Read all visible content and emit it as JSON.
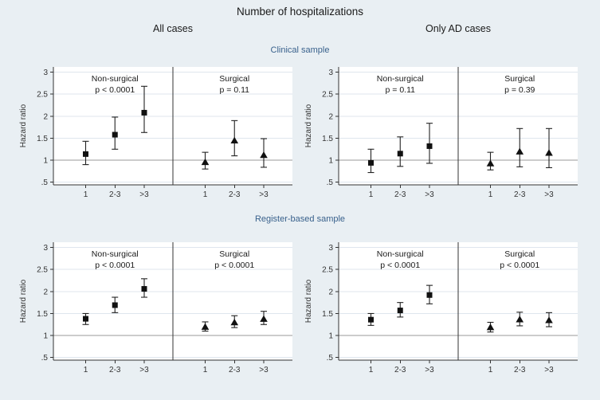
{
  "title": "Number of hospitalizations",
  "columns": {
    "left": "All cases",
    "right": "Only AD cases"
  },
  "sections": {
    "top": "Clinical sample",
    "bottom": "Register-based sample"
  },
  "colors": {
    "background": "#e9eff3",
    "plot_background": "#ffffff",
    "grid": "#dfe6ee",
    "reference_line": "#999999",
    "axis": "#333333",
    "divider": "#333333",
    "marker": "#111111",
    "error_bar": "#222222",
    "section_header": "#39618c",
    "text": "#1a1a1a",
    "tick_text": "#333333"
  },
  "chart_data": [
    {
      "type": "scatter",
      "section": "Clinical sample",
      "column": "All cases",
      "ylabel": "Hazard ratio",
      "ylim": [
        0.44,
        3.12
      ],
      "ref_line": 1,
      "grid": true,
      "yticks": [
        {
          "value": 0.5,
          "label": ".5"
        },
        {
          "value": 1,
          "label": "1"
        },
        {
          "value": 1.5,
          "label": "1.5"
        },
        {
          "value": 2,
          "label": "2"
        },
        {
          "value": 2.5,
          "label": "2.5"
        },
        {
          "value": 3,
          "label": "3"
        }
      ],
      "categories": [
        "1",
        "2-3",
        ">3"
      ],
      "subpanels": [
        {
          "label": "Non-surgical",
          "p_label": "p < 0.0001",
          "marker": "square",
          "points": [
            {
              "category": "1",
              "y": 1.14,
              "ci_low": 0.9,
              "ci_high": 1.43
            },
            {
              "category": "2-3",
              "y": 1.58,
              "ci_low": 1.25,
              "ci_high": 1.98
            },
            {
              "category": ">3",
              "y": 2.08,
              "ci_low": 1.63,
              "ci_high": 2.68
            }
          ]
        },
        {
          "label": "Surgical",
          "p_label": "p = 0.11",
          "marker": "triangle",
          "points": [
            {
              "category": "1",
              "y": 0.96,
              "ci_low": 0.8,
              "ci_high": 1.18
            },
            {
              "category": "2-3",
              "y": 1.45,
              "ci_low": 1.1,
              "ci_high": 1.9
            },
            {
              "category": ">3",
              "y": 1.12,
              "ci_low": 0.84,
              "ci_high": 1.49
            }
          ]
        }
      ]
    },
    {
      "type": "scatter",
      "section": "Clinical sample",
      "column": "Only AD cases",
      "ylabel": "Hazard ratio",
      "ylim": [
        0.44,
        3.12
      ],
      "ref_line": 1,
      "grid": true,
      "yticks": [
        {
          "value": 0.5,
          "label": ".5"
        },
        {
          "value": 1,
          "label": "1"
        },
        {
          "value": 1.5,
          "label": "1.5"
        },
        {
          "value": 2,
          "label": "2"
        },
        {
          "value": 2.5,
          "label": "2.5"
        },
        {
          "value": 3,
          "label": "3"
        }
      ],
      "categories": [
        "1",
        "2-3",
        ">3"
      ],
      "subpanels": [
        {
          "label": "Non-surgical",
          "p_label": "p = 0.11",
          "marker": "square",
          "points": [
            {
              "category": "1",
              "y": 0.94,
              "ci_low": 0.72,
              "ci_high": 1.25
            },
            {
              "category": "2-3",
              "y": 1.15,
              "ci_low": 0.86,
              "ci_high": 1.53
            },
            {
              "category": ">3",
              "y": 1.32,
              "ci_low": 0.93,
              "ci_high": 1.84
            }
          ]
        },
        {
          "label": "Surgical",
          "p_label": "p = 0.39",
          "marker": "triangle",
          "points": [
            {
              "category": "1",
              "y": 0.93,
              "ci_low": 0.78,
              "ci_high": 1.18
            },
            {
              "category": "2-3",
              "y": 1.2,
              "ci_low": 0.85,
              "ci_high": 1.72
            },
            {
              "category": ">3",
              "y": 1.17,
              "ci_low": 0.83,
              "ci_high": 1.72
            }
          ]
        }
      ]
    },
    {
      "type": "scatter",
      "section": "Register-based sample",
      "column": "All cases",
      "ylabel": "Hazard ratio",
      "ylim": [
        0.44,
        3.12
      ],
      "ref_line": 1,
      "grid": true,
      "yticks": [
        {
          "value": 0.5,
          "label": ".5"
        },
        {
          "value": 1,
          "label": "1"
        },
        {
          "value": 1.5,
          "label": "1.5"
        },
        {
          "value": 2,
          "label": "2"
        },
        {
          "value": 2.5,
          "label": "2.5"
        },
        {
          "value": 3,
          "label": "3"
        }
      ],
      "categories": [
        "1",
        "2-3",
        ">3"
      ],
      "subpanels": [
        {
          "label": "Non-surgical",
          "p_label": "p < 0.0001",
          "marker": "square",
          "points": [
            {
              "category": "1",
              "y": 1.38,
              "ci_low": 1.25,
              "ci_high": 1.5
            },
            {
              "category": "2-3",
              "y": 1.69,
              "ci_low": 1.52,
              "ci_high": 1.87
            },
            {
              "category": ">3",
              "y": 2.06,
              "ci_low": 1.87,
              "ci_high": 2.29
            }
          ]
        },
        {
          "label": "Surgical",
          "p_label": "p < 0.0001",
          "marker": "triangle",
          "points": [
            {
              "category": "1",
              "y": 1.2,
              "ci_low": 1.1,
              "ci_high": 1.31
            },
            {
              "category": "2-3",
              "y": 1.3,
              "ci_low": 1.18,
              "ci_high": 1.45
            },
            {
              "category": ">3",
              "y": 1.38,
              "ci_low": 1.25,
              "ci_high": 1.55
            }
          ]
        }
      ]
    },
    {
      "type": "scatter",
      "section": "Register-based sample",
      "column": "Only AD cases",
      "ylabel": "Hazard ratio",
      "ylim": [
        0.44,
        3.12
      ],
      "ref_line": 1,
      "grid": true,
      "yticks": [
        {
          "value": 0.5,
          "label": ".5"
        },
        {
          "value": 1,
          "label": "1"
        },
        {
          "value": 1.5,
          "label": "1.5"
        },
        {
          "value": 2,
          "label": "2"
        },
        {
          "value": 2.5,
          "label": "2.5"
        },
        {
          "value": 3,
          "label": "3"
        }
      ],
      "categories": [
        "1",
        "2-3",
        ">3"
      ],
      "subpanels": [
        {
          "label": "Non-surgical",
          "p_label": "p < 0.0001",
          "marker": "square",
          "points": [
            {
              "category": "1",
              "y": 1.36,
              "ci_low": 1.23,
              "ci_high": 1.5
            },
            {
              "category": "2-3",
              "y": 1.57,
              "ci_low": 1.42,
              "ci_high": 1.75
            },
            {
              "category": ">3",
              "y": 1.92,
              "ci_low": 1.72,
              "ci_high": 2.14
            }
          ]
        },
        {
          "label": "Surgical",
          "p_label": "p < 0.0001",
          "marker": "triangle",
          "points": [
            {
              "category": "1",
              "y": 1.19,
              "ci_low": 1.08,
              "ci_high": 1.3
            },
            {
              "category": "2-3",
              "y": 1.37,
              "ci_low": 1.22,
              "ci_high": 1.53
            },
            {
              "category": ">3",
              "y": 1.35,
              "ci_low": 1.2,
              "ci_high": 1.52
            }
          ]
        }
      ]
    }
  ]
}
